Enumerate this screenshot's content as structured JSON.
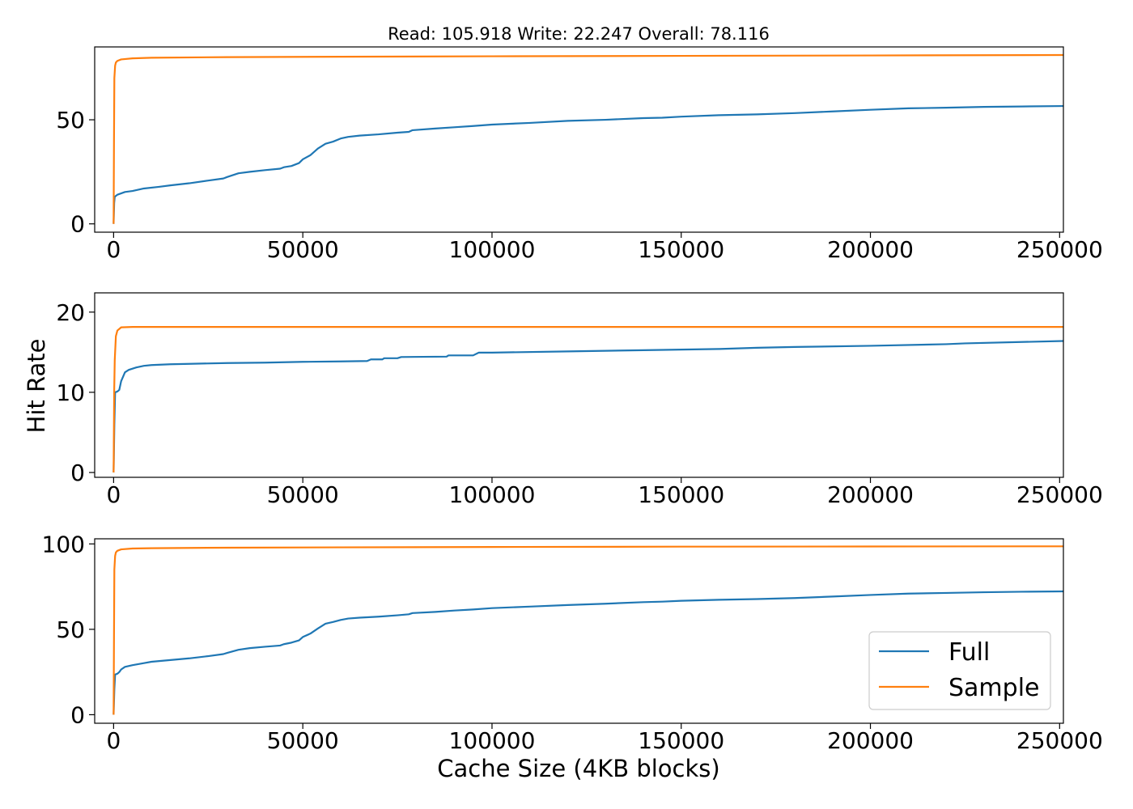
{
  "chart_data": {
    "type": "line",
    "title": "Read: 105.918 Write: 22.247 Overall: 78.116",
    "xlabel": "Cache Size (4KB blocks)",
    "ylabel": "Hit Rate",
    "legend": {
      "placement": "lower-right",
      "entries": [
        "Full",
        "Sample"
      ]
    },
    "colors": {
      "Full": "#1f77b4",
      "Sample": "#ff7f0e"
    },
    "grid": false,
    "xlim": [
      -5000,
      251000
    ],
    "x_ticks": [
      0,
      50000,
      100000,
      150000,
      200000,
      250000
    ],
    "x_tick_labels": [
      "0",
      "50000",
      "100000",
      "150000",
      "200000",
      "250000"
    ],
    "panels": [
      {
        "ylim": [
          -4,
          85
        ],
        "y_ticks": [
          0,
          50
        ],
        "y_tick_labels": [
          "0",
          "50"
        ],
        "series": [
          {
            "name": "Full",
            "points": [
              [
                0,
                0
              ],
              [
                150,
                10
              ],
              [
                300,
                13
              ],
              [
                1000,
                14
              ],
              [
                3000,
                15.3
              ],
              [
                5000,
                15.8
              ],
              [
                8000,
                17
              ],
              [
                12000,
                17.8
              ],
              [
                15000,
                18.5
              ],
              [
                20000,
                19.5
              ],
              [
                25000,
                20.8
              ],
              [
                29000,
                21.8
              ],
              [
                30000,
                22.5
              ],
              [
                33000,
                24.3
              ],
              [
                36000,
                25
              ],
              [
                40000,
                25.8
              ],
              [
                44000,
                26.5
              ],
              [
                45000,
                27.2
              ],
              [
                47000,
                27.8
              ],
              [
                49000,
                29.2
              ],
              [
                50000,
                31
              ],
              [
                52000,
                33
              ],
              [
                54000,
                36.2
              ],
              [
                56000,
                38.5
              ],
              [
                58000,
                39.5
              ],
              [
                60000,
                41
              ],
              [
                62000,
                41.8
              ],
              [
                65000,
                42.4
              ],
              [
                70000,
                43
              ],
              [
                75000,
                43.8
              ],
              [
                78000,
                44.2
              ],
              [
                79000,
                45
              ],
              [
                85000,
                45.8
              ],
              [
                90000,
                46.4
              ],
              [
                95000,
                47
              ],
              [
                100000,
                47.7
              ],
              [
                110000,
                48.5
              ],
              [
                120000,
                49.5
              ],
              [
                130000,
                50
              ],
              [
                140000,
                50.8
              ],
              [
                145000,
                51
              ],
              [
                150000,
                51.5
              ],
              [
                160000,
                52.2
              ],
              [
                170000,
                52.6
              ],
              [
                180000,
                53.2
              ],
              [
                190000,
                54
              ],
              [
                200000,
                54.8
              ],
              [
                210000,
                55.5
              ],
              [
                220000,
                55.8
              ],
              [
                230000,
                56.2
              ],
              [
                240000,
                56.4
              ],
              [
                251000,
                56.6
              ]
            ]
          },
          {
            "name": "Sample",
            "points": [
              [
                0,
                0
              ],
              [
                100,
                40
              ],
              [
                200,
                70
              ],
              [
                400,
                76
              ],
              [
                600,
                77.5
              ],
              [
                1000,
                78.3
              ],
              [
                2000,
                79
              ],
              [
                5000,
                79.5
              ],
              [
                10000,
                79.8
              ],
              [
                30000,
                80.1
              ],
              [
                60000,
                80.3
              ],
              [
                100000,
                80.5
              ],
              [
                150000,
                80.7
              ],
              [
                200000,
                80.9
              ],
              [
                251000,
                81.1
              ]
            ]
          }
        ]
      },
      {
        "ylim": [
          -0.6,
          22.4
        ],
        "y_ticks": [
          0,
          10,
          20
        ],
        "y_tick_labels": [
          "0",
          "10",
          "20"
        ],
        "series": [
          {
            "name": "Full",
            "points": [
              [
                0,
                0
              ],
              [
                200,
                6
              ],
              [
                400,
                10
              ],
              [
                1000,
                10.1
              ],
              [
                1500,
                10.3
              ],
              [
                2000,
                11.4
              ],
              [
                3000,
                12.5
              ],
              [
                4000,
                12.8
              ],
              [
                6000,
                13.1
              ],
              [
                8000,
                13.3
              ],
              [
                10000,
                13.4
              ],
              [
                15000,
                13.5
              ],
              [
                20000,
                13.55
              ],
              [
                30000,
                13.65
              ],
              [
                40000,
                13.7
              ],
              [
                50000,
                13.8
              ],
              [
                60000,
                13.85
              ],
              [
                67000,
                13.9
              ],
              [
                68000,
                14.1
              ],
              [
                71000,
                14.1
              ],
              [
                71500,
                14.25
              ],
              [
                75000,
                14.25
              ],
              [
                76000,
                14.4
              ],
              [
                88000,
                14.45
              ],
              [
                88500,
                14.6
              ],
              [
                95000,
                14.6
              ],
              [
                96500,
                14.95
              ],
              [
                100000,
                14.95
              ],
              [
                120000,
                15.1
              ],
              [
                140000,
                15.25
              ],
              [
                160000,
                15.4
              ],
              [
                170000,
                15.55
              ],
              [
                180000,
                15.65
              ],
              [
                200000,
                15.8
              ],
              [
                220000,
                16
              ],
              [
                225000,
                16.1
              ],
              [
                251000,
                16.4
              ]
            ]
          },
          {
            "name": "Sample",
            "points": [
              [
                0,
                0
              ],
              [
                150,
                10
              ],
              [
                300,
                14
              ],
              [
                600,
                17
              ],
              [
                1000,
                17.7
              ],
              [
                2000,
                18.1
              ],
              [
                5000,
                18.15
              ],
              [
                50000,
                18.15
              ],
              [
                100000,
                18.15
              ],
              [
                251000,
                18.15
              ]
            ]
          }
        ]
      },
      {
        "ylim": [
          -5,
          103
        ],
        "y_ticks": [
          0,
          50,
          100
        ],
        "y_tick_labels": [
          "0",
          "50",
          "100"
        ],
        "series": [
          {
            "name": "Full",
            "points": [
              [
                0,
                0
              ],
              [
                200,
                15
              ],
              [
                400,
                23.5
              ],
              [
                1000,
                24
              ],
              [
                1500,
                25
              ],
              [
                2000,
                26.5
              ],
              [
                3000,
                28
              ],
              [
                5000,
                29
              ],
              [
                8000,
                30.2
              ],
              [
                10000,
                31
              ],
              [
                15000,
                32
              ],
              [
                20000,
                33
              ],
              [
                25000,
                34.3
              ],
              [
                29000,
                35.5
              ],
              [
                30000,
                36.2
              ],
              [
                33000,
                38
              ],
              [
                36000,
                39
              ],
              [
                40000,
                39.8
              ],
              [
                44000,
                40.5
              ],
              [
                45000,
                41.3
              ],
              [
                47000,
                42.2
              ],
              [
                49000,
                43.5
              ],
              [
                50000,
                45.5
              ],
              [
                52000,
                47.5
              ],
              [
                54000,
                50.5
              ],
              [
                56000,
                53.3
              ],
              [
                58000,
                54.3
              ],
              [
                60000,
                55.5
              ],
              [
                62000,
                56.3
              ],
              [
                65000,
                56.8
              ],
              [
                70000,
                57.4
              ],
              [
                75000,
                58.2
              ],
              [
                78000,
                58.8
              ],
              [
                79000,
                59.5
              ],
              [
                85000,
                60.2
              ],
              [
                90000,
                61
              ],
              [
                95000,
                61.6
              ],
              [
                100000,
                62.4
              ],
              [
                110000,
                63.3
              ],
              [
                120000,
                64.2
              ],
              [
                130000,
                65
              ],
              [
                140000,
                65.9
              ],
              [
                145000,
                66.2
              ],
              [
                150000,
                66.7
              ],
              [
                160000,
                67.3
              ],
              [
                170000,
                67.7
              ],
              [
                180000,
                68.3
              ],
              [
                190000,
                69.2
              ],
              [
                200000,
                70.1
              ],
              [
                210000,
                70.9
              ],
              [
                220000,
                71.3
              ],
              [
                230000,
                71.7
              ],
              [
                240000,
                72
              ],
              [
                251000,
                72.2
              ]
            ]
          },
          {
            "name": "Sample",
            "points": [
              [
                0,
                0
              ],
              [
                100,
                45
              ],
              [
                200,
                85
              ],
              [
                400,
                93
              ],
              [
                600,
                95
              ],
              [
                1000,
                96
              ],
              [
                2000,
                96.8
              ],
              [
                5000,
                97.3
              ],
              [
                10000,
                97.5
              ],
              [
                30000,
                97.8
              ],
              [
                60000,
                98
              ],
              [
                100000,
                98.2
              ],
              [
                150000,
                98.4
              ],
              [
                200000,
                98.5
              ],
              [
                251000,
                98.6
              ]
            ]
          }
        ]
      }
    ]
  }
}
